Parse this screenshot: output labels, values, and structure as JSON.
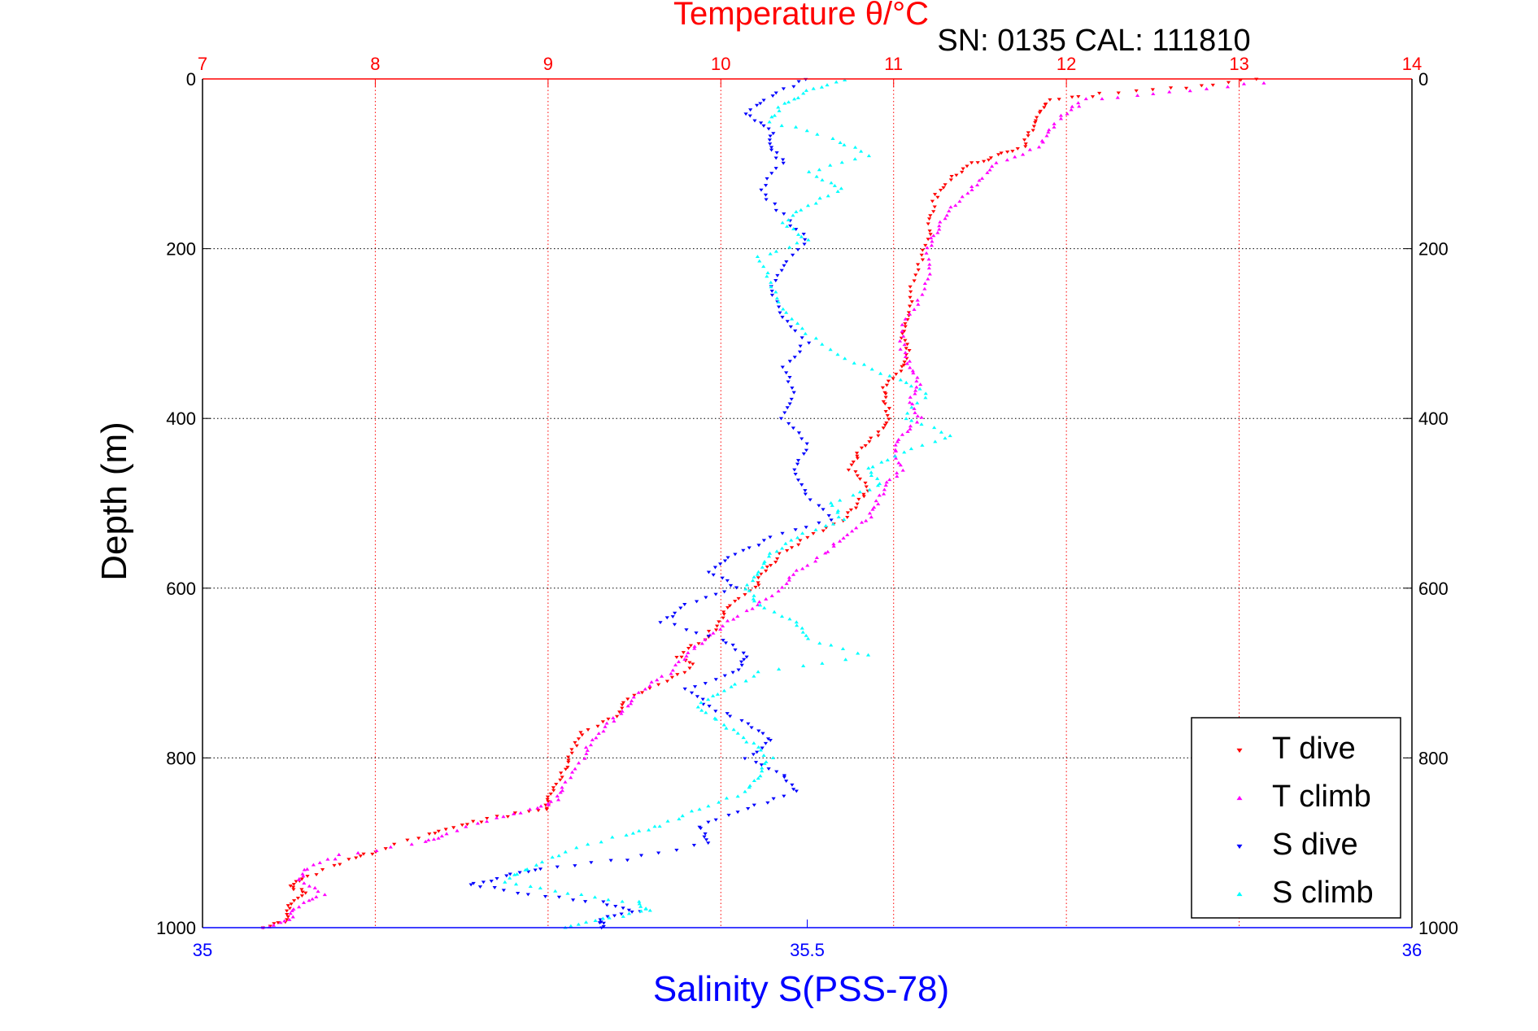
{
  "chart_data": {
    "type": "scatter",
    "title": "Temperature θ/°C",
    "subtitle": "SN: 0135  CAL: 111810",
    "xlabel_top": "Temperature θ/°C",
    "xlabel_bottom": "Salinity S(PSS-78)",
    "ylabel": "Depth (m)",
    "temperature_axis": {
      "range": [
        7,
        14
      ],
      "ticks": [
        "7",
        "8",
        "9",
        "10",
        "11",
        "12",
        "13",
        "14"
      ]
    },
    "salinity_axis": {
      "range": [
        35,
        36
      ],
      "ticks": [
        "35",
        "35.5",
        "36"
      ]
    },
    "depth_axis": {
      "range": [
        0,
        1000
      ],
      "reversed": true,
      "ticks": [
        "0",
        "200",
        "400",
        "600",
        "800",
        "1000"
      ]
    },
    "grid": true,
    "legend_position": "bottom-right",
    "series": [
      {
        "name": "T dive",
        "axis": "temperature",
        "color": "#ff0000",
        "marker": "triangle-down",
        "points": [
          [
            13.1,
            0
          ],
          [
            12.7,
            10
          ],
          [
            12.2,
            18
          ],
          [
            11.9,
            25
          ],
          [
            11.85,
            40
          ],
          [
            11.8,
            60
          ],
          [
            11.75,
            80
          ],
          [
            11.6,
            90
          ],
          [
            11.45,
            100
          ],
          [
            11.35,
            115
          ],
          [
            11.25,
            135
          ],
          [
            11.22,
            160
          ],
          [
            11.2,
            190
          ],
          [
            11.15,
            220
          ],
          [
            11.1,
            250
          ],
          [
            11.1,
            280
          ],
          [
            11.05,
            300
          ],
          [
            11.08,
            320
          ],
          [
            11.05,
            340
          ],
          [
            10.95,
            360
          ],
          [
            10.95,
            380
          ],
          [
            10.98,
            400
          ],
          [
            10.9,
            420
          ],
          [
            10.8,
            440
          ],
          [
            10.75,
            460
          ],
          [
            10.85,
            480
          ],
          [
            10.8,
            500
          ],
          [
            10.7,
            520
          ],
          [
            10.5,
            540
          ],
          [
            10.35,
            560
          ],
          [
            10.25,
            580
          ],
          [
            10.2,
            600
          ],
          [
            10.05,
            620
          ],
          [
            10.0,
            640
          ],
          [
            9.9,
            660
          ],
          [
            9.75,
            680
          ],
          [
            9.85,
            690
          ],
          [
            9.7,
            710
          ],
          [
            9.45,
            730
          ],
          [
            9.4,
            750
          ],
          [
            9.2,
            770
          ],
          [
            9.15,
            790
          ],
          [
            9.1,
            810
          ],
          [
            9.05,
            830
          ],
          [
            9.0,
            850
          ],
          [
            9.0,
            860
          ],
          [
            8.7,
            870
          ],
          [
            8.5,
            880
          ],
          [
            8.3,
            890
          ],
          [
            8.0,
            910
          ],
          [
            7.85,
            920
          ],
          [
            7.6,
            940
          ],
          [
            7.5,
            950
          ],
          [
            7.6,
            960
          ],
          [
            7.5,
            975
          ],
          [
            7.5,
            990
          ],
          [
            7.35,
            1000
          ]
        ]
      },
      {
        "name": "T climb",
        "axis": "temperature",
        "color": "#ff00ff",
        "marker": "triangle-up",
        "points": [
          [
            13.15,
            5
          ],
          [
            12.6,
            15
          ],
          [
            12.1,
            25
          ],
          [
            12.0,
            40
          ],
          [
            11.9,
            60
          ],
          [
            11.85,
            80
          ],
          [
            11.6,
            100
          ],
          [
            11.5,
            120
          ],
          [
            11.4,
            140
          ],
          [
            11.3,
            160
          ],
          [
            11.25,
            180
          ],
          [
            11.2,
            200
          ],
          [
            11.2,
            230
          ],
          [
            11.15,
            260
          ],
          [
            11.05,
            290
          ],
          [
            11.05,
            320
          ],
          [
            11.1,
            340
          ],
          [
            11.15,
            360
          ],
          [
            11.1,
            380
          ],
          [
            11.15,
            400
          ],
          [
            11.05,
            420
          ],
          [
            11.0,
            440
          ],
          [
            11.05,
            460
          ],
          [
            10.95,
            480
          ],
          [
            10.9,
            500
          ],
          [
            10.85,
            520
          ],
          [
            10.7,
            540
          ],
          [
            10.6,
            560
          ],
          [
            10.45,
            580
          ],
          [
            10.35,
            600
          ],
          [
            10.2,
            620
          ],
          [
            10.05,
            640
          ],
          [
            9.9,
            660
          ],
          [
            9.8,
            680
          ],
          [
            9.7,
            700
          ],
          [
            9.55,
            720
          ],
          [
            9.45,
            740
          ],
          [
            9.35,
            760
          ],
          [
            9.25,
            780
          ],
          [
            9.2,
            800
          ],
          [
            9.1,
            830
          ],
          [
            9.05,
            850
          ],
          [
            8.95,
            860
          ],
          [
            8.7,
            870
          ],
          [
            8.4,
            890
          ],
          [
            8.3,
            900
          ],
          [
            7.8,
            915
          ],
          [
            7.6,
            930
          ],
          [
            7.55,
            945
          ],
          [
            7.7,
            960
          ],
          [
            7.55,
            975
          ],
          [
            7.5,
            990
          ],
          [
            7.35,
            1000
          ]
        ]
      },
      {
        "name": "S dive",
        "axis": "salinity",
        "color": "#0000ff",
        "marker": "triangle-down",
        "points": [
          [
            35.5,
            0
          ],
          [
            35.47,
            20
          ],
          [
            35.45,
            40
          ],
          [
            35.47,
            60
          ],
          [
            35.47,
            80
          ],
          [
            35.48,
            100
          ],
          [
            35.46,
            130
          ],
          [
            35.48,
            160
          ],
          [
            35.5,
            190
          ],
          [
            35.48,
            220
          ],
          [
            35.47,
            250
          ],
          [
            35.48,
            280
          ],
          [
            35.5,
            310
          ],
          [
            35.48,
            340
          ],
          [
            35.49,
            370
          ],
          [
            35.48,
            400
          ],
          [
            35.5,
            430
          ],
          [
            35.49,
            460
          ],
          [
            35.5,
            490
          ],
          [
            35.52,
            520
          ],
          [
            35.47,
            540
          ],
          [
            35.44,
            560
          ],
          [
            35.42,
            580
          ],
          [
            35.44,
            600
          ],
          [
            35.4,
            620
          ],
          [
            35.38,
            640
          ],
          [
            35.43,
            660
          ],
          [
            35.45,
            680
          ],
          [
            35.44,
            700
          ],
          [
            35.4,
            720
          ],
          [
            35.42,
            740
          ],
          [
            35.45,
            760
          ],
          [
            35.47,
            780
          ],
          [
            35.45,
            800
          ],
          [
            35.48,
            820
          ],
          [
            35.49,
            840
          ],
          [
            35.45,
            860
          ],
          [
            35.41,
            880
          ],
          [
            35.42,
            900
          ],
          [
            35.35,
            920
          ],
          [
            35.28,
            930
          ],
          [
            35.25,
            940
          ],
          [
            35.22,
            950
          ],
          [
            35.27,
            960
          ],
          [
            35.33,
            970
          ],
          [
            35.36,
            980
          ],
          [
            35.33,
            990
          ],
          [
            35.33,
            1000
          ]
        ]
      },
      {
        "name": "S climb",
        "axis": "salinity",
        "color": "#00ffff",
        "marker": "triangle-up",
        "points": [
          [
            35.53,
            0
          ],
          [
            35.5,
            15
          ],
          [
            35.48,
            30
          ],
          [
            35.47,
            50
          ],
          [
            35.52,
            70
          ],
          [
            35.55,
            90
          ],
          [
            35.5,
            110
          ],
          [
            35.53,
            130
          ],
          [
            35.5,
            150
          ],
          [
            35.48,
            170
          ],
          [
            35.5,
            190
          ],
          [
            35.46,
            210
          ],
          [
            35.47,
            240
          ],
          [
            35.48,
            270
          ],
          [
            35.5,
            300
          ],
          [
            35.53,
            330
          ],
          [
            35.57,
            350
          ],
          [
            35.6,
            370
          ],
          [
            35.58,
            400
          ],
          [
            35.62,
            420
          ],
          [
            35.58,
            440
          ],
          [
            35.55,
            460
          ],
          [
            35.56,
            480
          ],
          [
            35.52,
            500
          ],
          [
            35.53,
            520
          ],
          [
            35.49,
            540
          ],
          [
            35.47,
            560
          ],
          [
            35.46,
            580
          ],
          [
            35.45,
            600
          ],
          [
            35.46,
            620
          ],
          [
            35.49,
            640
          ],
          [
            35.5,
            660
          ],
          [
            35.55,
            680
          ],
          [
            35.46,
            700
          ],
          [
            35.43,
            720
          ],
          [
            35.41,
            740
          ],
          [
            35.43,
            760
          ],
          [
            35.45,
            780
          ],
          [
            35.47,
            800
          ],
          [
            35.46,
            820
          ],
          [
            35.45,
            840
          ],
          [
            35.41,
            860
          ],
          [
            35.38,
            880
          ],
          [
            35.35,
            890
          ],
          [
            35.3,
            910
          ],
          [
            35.27,
            930
          ],
          [
            35.25,
            945
          ],
          [
            35.3,
            960
          ],
          [
            35.36,
            970
          ],
          [
            35.37,
            980
          ],
          [
            35.33,
            990
          ],
          [
            35.3,
            1000
          ]
        ]
      }
    ],
    "legend": [
      {
        "label": "T dive",
        "color": "#ff0000",
        "marker": "triangle-down"
      },
      {
        "label": "T climb",
        "color": "#ff00ff",
        "marker": "triangle-up"
      },
      {
        "label": "S dive",
        "color": "#0000ff",
        "marker": "triangle-down"
      },
      {
        "label": "S climb",
        "color": "#00ffff",
        "marker": "triangle-up"
      }
    ]
  }
}
